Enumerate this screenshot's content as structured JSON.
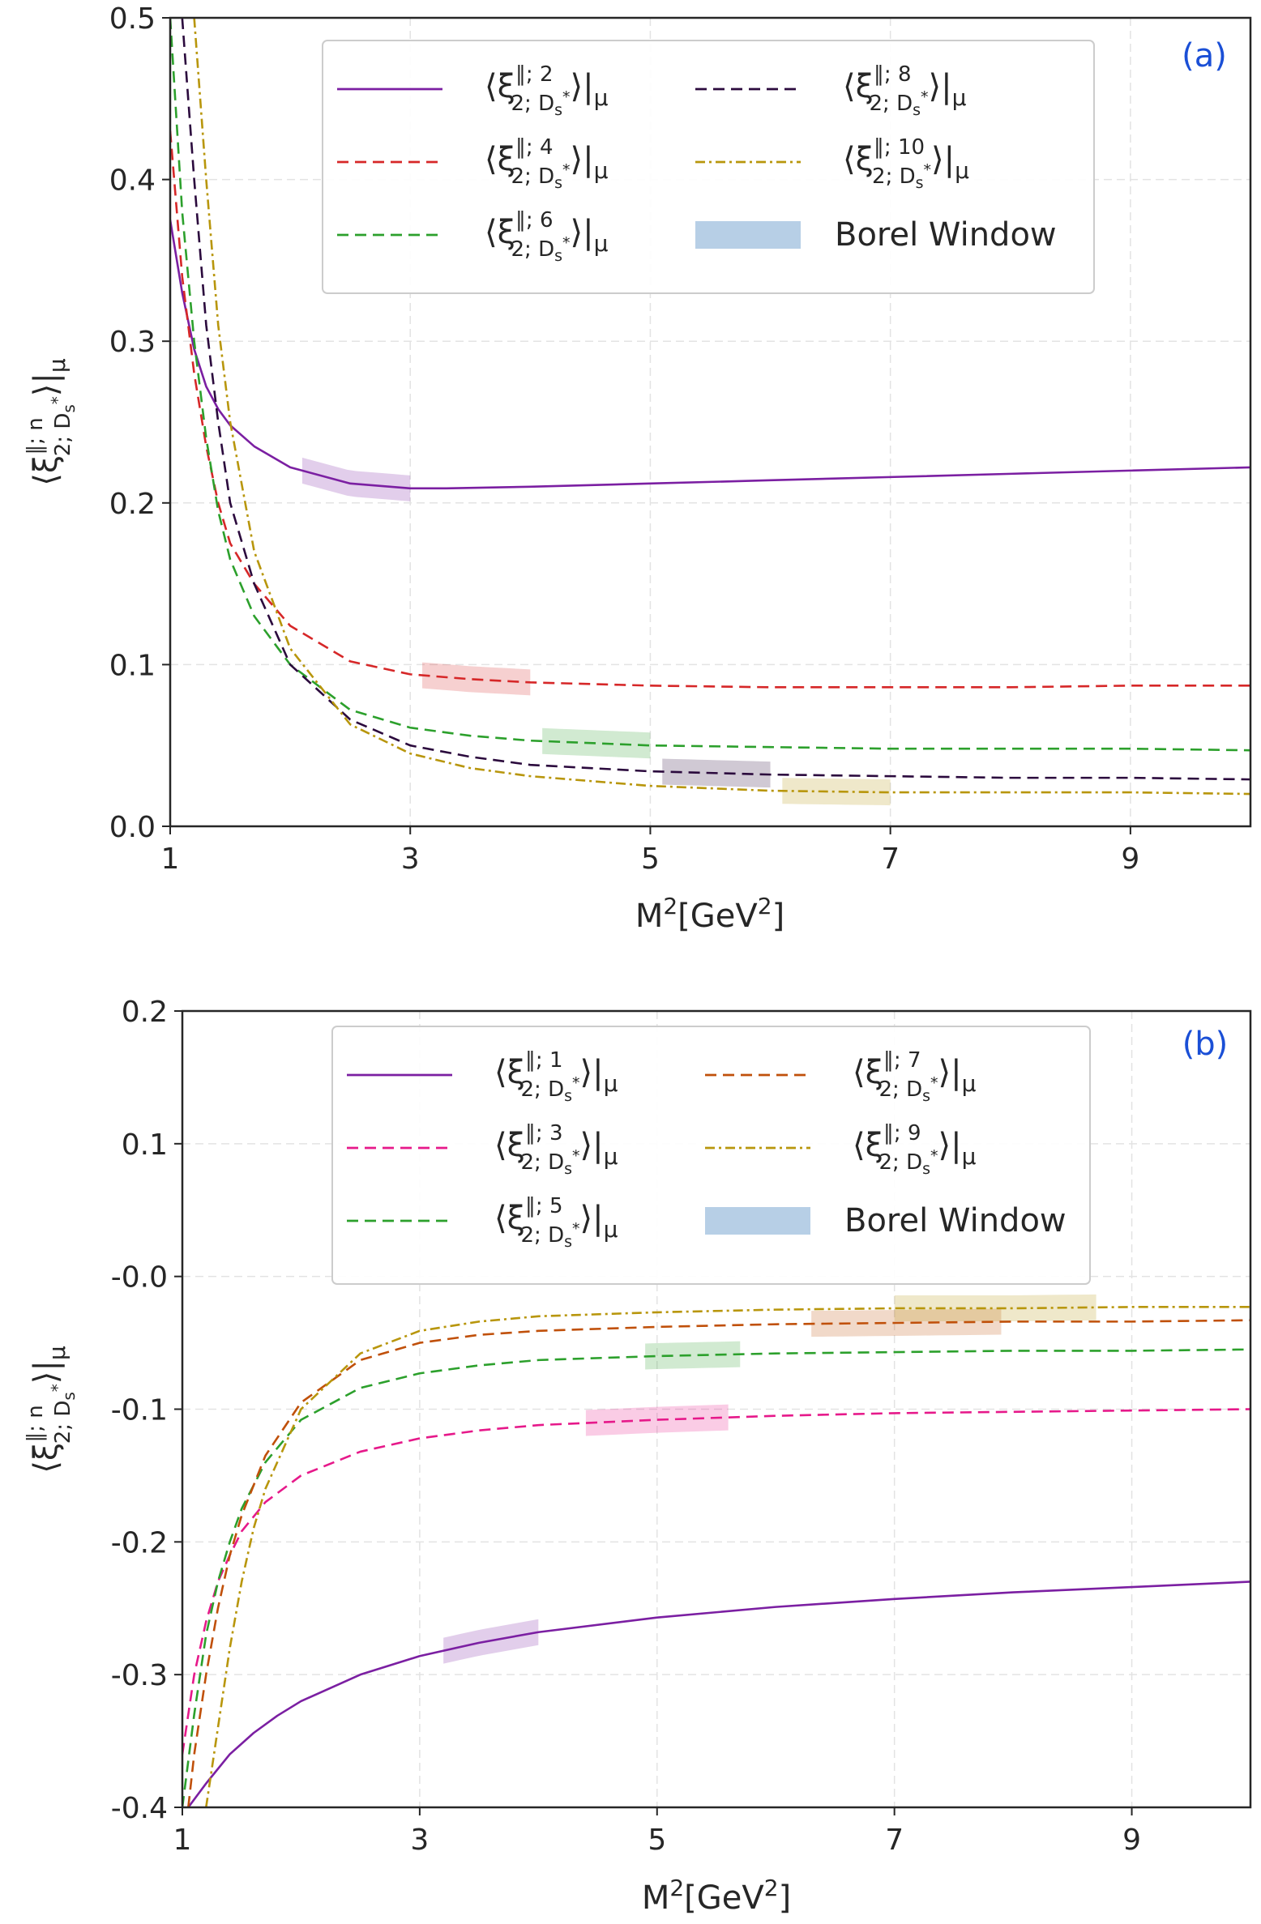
{
  "chart_data": [
    {
      "type": "line",
      "panel_label": "(a)",
      "xlabel": "M²[GeV²]",
      "ylabel": "⟨ξ^{∥;n}_{2;D_s*}⟩|_μ",
      "xlim": [
        1,
        10
      ],
      "ylim": [
        0.0,
        0.5
      ],
      "x_ticks": [
        1,
        3,
        5,
        7,
        9
      ],
      "x_tick_labels": [
        "1",
        "3",
        "5",
        "7",
        "9"
      ],
      "y_ticks": [
        0.0,
        0.1,
        0.2,
        0.3,
        0.4,
        0.5
      ],
      "y_tick_labels": [
        "0.0",
        "0.1",
        "0.2",
        "0.3",
        "0.4",
        "0.5"
      ],
      "grid": true,
      "legend_position": "top-center",
      "series": [
        {
          "name": "⟨ξ^{∥;2}_{2;D_s*}⟩|_μ",
          "color": "#7b1fa2",
          "style": "solid",
          "x": [
            1.0,
            1.1,
            1.2,
            1.3,
            1.4,
            1.5,
            1.7,
            2.0,
            2.5,
            3.0,
            3.3,
            4.0,
            5.0,
            6.0,
            7.0,
            8.0,
            9.0,
            10.0
          ],
          "y": [
            0.375,
            0.33,
            0.295,
            0.272,
            0.258,
            0.248,
            0.235,
            0.222,
            0.212,
            0.209,
            0.209,
            0.21,
            0.212,
            0.214,
            0.216,
            0.218,
            0.22,
            0.222
          ],
          "borel_window": [
            2.1,
            3.0
          ]
        },
        {
          "name": "⟨ξ^{∥;4}_{2;D_s*}⟩|_μ",
          "color": "#d62728",
          "style": "dashed",
          "x": [
            1.0,
            1.1,
            1.2,
            1.3,
            1.4,
            1.5,
            1.7,
            2.0,
            2.5,
            3.0,
            3.5,
            4.0,
            5.0,
            6.0,
            7.0,
            8.0,
            9.0,
            10.0
          ],
          "y": [
            0.43,
            0.34,
            0.28,
            0.235,
            0.2,
            0.175,
            0.15,
            0.124,
            0.102,
            0.094,
            0.091,
            0.089,
            0.087,
            0.086,
            0.086,
            0.086,
            0.087,
            0.087
          ],
          "borel_window": [
            3.1,
            4.0
          ]
        },
        {
          "name": "⟨ξ^{∥;6}_{2;D_s*}⟩|_μ",
          "color": "#2ca02c",
          "style": "dashed",
          "x": [
            1.0,
            1.1,
            1.2,
            1.3,
            1.4,
            1.5,
            1.7,
            2.0,
            2.5,
            3.0,
            3.5,
            4.0,
            5.0,
            6.0,
            7.0,
            8.0,
            9.0,
            10.0
          ],
          "y": [
            0.5,
            0.38,
            0.3,
            0.24,
            0.195,
            0.165,
            0.13,
            0.1,
            0.072,
            0.061,
            0.056,
            0.053,
            0.05,
            0.049,
            0.048,
            0.048,
            0.048,
            0.047
          ],
          "borel_window": [
            4.1,
            5.0
          ]
        },
        {
          "name": "⟨ξ^{∥;8}_{2;D_s*}⟩|_μ",
          "color": "#2b0a3d",
          "style": "dashed",
          "x": [
            1.1,
            1.2,
            1.3,
            1.4,
            1.5,
            1.7,
            2.0,
            2.5,
            3.0,
            3.5,
            4.0,
            5.0,
            6.0,
            7.0,
            8.0,
            9.0,
            10.0
          ],
          "y": [
            0.5,
            0.4,
            0.31,
            0.25,
            0.2,
            0.15,
            0.1,
            0.066,
            0.05,
            0.043,
            0.038,
            0.034,
            0.032,
            0.031,
            0.03,
            0.03,
            0.029
          ],
          "borel_window": [
            5.1,
            6.0
          ]
        },
        {
          "name": "⟨ξ^{∥;10}_{2;D_s*}⟩|_μ",
          "color": "#b8960c",
          "style": "dashdot",
          "x": [
            1.2,
            1.3,
            1.4,
            1.5,
            1.7,
            2.0,
            2.5,
            3.0,
            3.5,
            4.0,
            5.0,
            6.0,
            7.0,
            8.0,
            9.0,
            10.0
          ],
          "y": [
            0.5,
            0.4,
            0.31,
            0.25,
            0.17,
            0.11,
            0.063,
            0.045,
            0.036,
            0.031,
            0.025,
            0.022,
            0.021,
            0.021,
            0.021,
            0.02
          ],
          "borel_window": [
            6.1,
            7.0
          ]
        }
      ],
      "legend_extra": "Borel Window"
    },
    {
      "type": "line",
      "panel_label": "(b)",
      "xlabel": "M²[GeV²]",
      "ylabel": "⟨ξ^{∥;n}_{2;D_s*}⟩|_μ",
      "xlim": [
        1,
        10
      ],
      "ylim": [
        -0.4,
        0.2
      ],
      "x_ticks": [
        1,
        3,
        5,
        7,
        9
      ],
      "x_tick_labels": [
        "1",
        "3",
        "5",
        "7",
        "9"
      ],
      "y_ticks": [
        -0.4,
        -0.3,
        -0.2,
        -0.1,
        0.0,
        0.1,
        0.2
      ],
      "y_tick_labels": [
        "-0.4",
        "-0.3",
        "-0.2",
        "-0.1",
        "-0.0",
        "0.1",
        "0.2"
      ],
      "grid": true,
      "legend_position": "top-center",
      "series": [
        {
          "name": "⟨ξ^{∥;1}_{2;D_s*}⟩|_μ",
          "color": "#7b1fa2",
          "style": "solid",
          "x": [
            1.05,
            1.2,
            1.4,
            1.6,
            1.8,
            2.0,
            2.5,
            3.0,
            3.5,
            4.0,
            5.0,
            6.0,
            7.0,
            8.0,
            9.0,
            10.0
          ],
          "y": [
            -0.4,
            -0.382,
            -0.36,
            -0.344,
            -0.331,
            -0.32,
            -0.3,
            -0.286,
            -0.276,
            -0.268,
            -0.257,
            -0.249,
            -0.243,
            -0.238,
            -0.234,
            -0.23
          ],
          "borel_window": [
            3.2,
            4.0
          ]
        },
        {
          "name": "⟨ξ^{∥;3}_{2;D_s*}⟩|_μ",
          "color": "#e6198a",
          "style": "dashed",
          "x": [
            1.0,
            1.1,
            1.2,
            1.3,
            1.4,
            1.5,
            1.7,
            2.0,
            2.5,
            3.0,
            3.5,
            4.0,
            5.0,
            6.0,
            7.0,
            8.0,
            9.0,
            10.0
          ],
          "y": [
            -0.36,
            -0.3,
            -0.26,
            -0.23,
            -0.21,
            -0.192,
            -0.17,
            -0.15,
            -0.132,
            -0.122,
            -0.116,
            -0.112,
            -0.108,
            -0.105,
            -0.103,
            -0.102,
            -0.101,
            -0.1
          ],
          "borel_window": [
            4.4,
            5.6
          ]
        },
        {
          "name": "⟨ξ^{∥;5}_{2;D_s*}⟩|_μ",
          "color": "#2ca02c",
          "style": "dashed",
          "x": [
            1.0,
            1.1,
            1.2,
            1.3,
            1.4,
            1.5,
            1.7,
            2.0,
            2.5,
            3.0,
            3.5,
            4.0,
            5.0,
            6.0,
            7.0,
            8.0,
            9.0,
            10.0
          ],
          "y": [
            -0.4,
            -0.33,
            -0.27,
            -0.23,
            -0.2,
            -0.175,
            -0.14,
            -0.108,
            -0.084,
            -0.073,
            -0.067,
            -0.063,
            -0.06,
            -0.058,
            -0.057,
            -0.056,
            -0.056,
            -0.055
          ],
          "borel_window": [
            4.9,
            5.7
          ]
        },
        {
          "name": "⟨ξ^{∥;7}_{2;D_s*}⟩|_μ",
          "color": "#c0500a",
          "style": "dashed",
          "x": [
            1.05,
            1.1,
            1.2,
            1.3,
            1.4,
            1.5,
            1.7,
            2.0,
            2.5,
            3.0,
            3.5,
            4.0,
            5.0,
            6.0,
            7.0,
            8.0,
            9.0,
            10.0
          ],
          "y": [
            -0.4,
            -0.36,
            -0.3,
            -0.25,
            -0.21,
            -0.18,
            -0.135,
            -0.095,
            -0.063,
            -0.05,
            -0.044,
            -0.041,
            -0.038,
            -0.036,
            -0.035,
            -0.034,
            -0.034,
            -0.033
          ],
          "borel_window": [
            6.3,
            7.9
          ]
        },
        {
          "name": "⟨ξ^{∥;9}_{2;D_s*}⟩|_μ",
          "color": "#b8960c",
          "style": "dashdot",
          "x": [
            1.2,
            1.3,
            1.4,
            1.5,
            1.6,
            1.7,
            2.0,
            2.5,
            3.0,
            3.5,
            4.0,
            5.0,
            6.0,
            7.0,
            8.0,
            9.0,
            10.0
          ],
          "y": [
            -0.4,
            -0.34,
            -0.28,
            -0.23,
            -0.19,
            -0.16,
            -0.1,
            -0.058,
            -0.041,
            -0.034,
            -0.03,
            -0.027,
            -0.025,
            -0.024,
            -0.024,
            -0.023,
            -0.023
          ],
          "borel_window": [
            7.0,
            8.7
          ]
        }
      ],
      "legend_extra": "Borel Window"
    }
  ],
  "borel_legend_color": "#b7cfe6"
}
